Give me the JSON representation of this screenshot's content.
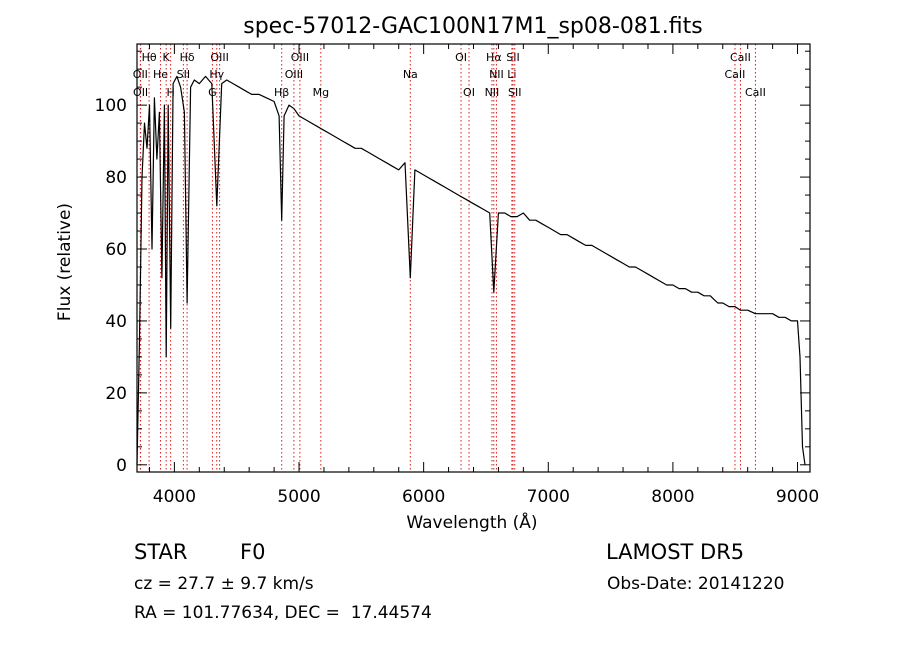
{
  "chart_data": {
    "type": "line",
    "title": "spec-57012-GAC100N17M1_sp08-081.fits",
    "xlabel": "Wavelength (Å)",
    "ylabel": "Flux (relative)",
    "xlim": [
      3700,
      9100
    ],
    "ylim": [
      -2,
      117
    ],
    "xticks": [
      4000,
      5000,
      6000,
      7000,
      8000,
      9000
    ],
    "yticks": [
      0,
      20,
      40,
      60,
      80,
      100
    ],
    "grid": false,
    "line_color": "#000000",
    "marker_color": "#cc2222",
    "line_markers": [
      {
        "label": "Hθ",
        "x": 3797,
        "row": 0
      },
      {
        "label": "K",
        "x": 3934,
        "row": 0
      },
      {
        "label": "Hδ",
        "x": 4102,
        "row": 0
      },
      {
        "label": "OIII",
        "x": 4363,
        "row": 0
      },
      {
        "label": "OIII",
        "x": 5007,
        "row": 0
      },
      {
        "label": "OI",
        "x": 6300,
        "row": 0
      },
      {
        "label": "Hα",
        "x": 6563,
        "row": 0
      },
      {
        "label": "SII",
        "x": 6717,
        "row": 0
      },
      {
        "label": "CaII",
        "x": 8542,
        "row": 0
      },
      {
        "label": "OII",
        "x": 3727,
        "row": 1
      },
      {
        "label": "He",
        "x": 3889,
        "row": 1
      },
      {
        "label": "SII",
        "x": 4072,
        "row": 1
      },
      {
        "label": "Hγ",
        "x": 4340,
        "row": 1
      },
      {
        "label": "OIII",
        "x": 4959,
        "row": 1
      },
      {
        "label": "Na",
        "x": 5893,
        "row": 1
      },
      {
        "label": "NII",
        "x": 6584,
        "row": 1
      },
      {
        "label": "Li",
        "x": 6708,
        "row": 1
      },
      {
        "label": "CaII",
        "x": 8498,
        "row": 1
      },
      {
        "label": "OII",
        "x": 3729,
        "row": 2
      },
      {
        "label": "H",
        "x": 3970,
        "row": 2
      },
      {
        "label": "G",
        "x": 4305,
        "row": 2
      },
      {
        "label": "Hβ",
        "x": 4861,
        "row": 2
      },
      {
        "label": "Mg",
        "x": 5175,
        "row": 2
      },
      {
        "label": "OI",
        "x": 6364,
        "row": 2
      },
      {
        "label": "NII",
        "x": 6548,
        "row": 2
      },
      {
        "label": "SII",
        "x": 6731,
        "row": 2
      },
      {
        "label": "CaII",
        "x": 8662,
        "row": 2
      }
    ],
    "series": [
      {
        "x": [
          3700,
          3720,
          3740,
          3760,
          3780,
          3800,
          3820,
          3840,
          3860,
          3880,
          3900,
          3920,
          3934,
          3950,
          3970,
          3990,
          4020,
          4050,
          4080,
          4102,
          4130,
          4160,
          4200,
          4250,
          4300,
          4340,
          4380,
          4420,
          4470,
          4520,
          4570,
          4620,
          4680,
          4740,
          4800,
          4840,
          4861,
          4880,
          4920,
          4960,
          5000,
          5050,
          5100,
          5150,
          5200,
          5250,
          5300,
          5350,
          5400,
          5450,
          5500,
          5550,
          5600,
          5650,
          5700,
          5750,
          5800,
          5850,
          5893,
          5930,
          5980,
          6030,
          6080,
          6130,
          6180,
          6230,
          6280,
          6330,
          6380,
          6430,
          6480,
          6530,
          6563,
          6600,
          6650,
          6700,
          6750,
          6800,
          6850,
          6900,
          6950,
          7000,
          7050,
          7100,
          7150,
          7200,
          7250,
          7300,
          7350,
          7400,
          7450,
          7500,
          7550,
          7600,
          7650,
          7700,
          7750,
          7800,
          7850,
          7900,
          7950,
          8000,
          8050,
          8100,
          8150,
          8200,
          8250,
          8300,
          8330,
          8360,
          8400,
          8450,
          8498,
          8542,
          8600,
          8662,
          8700,
          8750,
          8800,
          8850,
          8900,
          8950,
          9000,
          9020,
          9040,
          9060
        ],
        "y": [
          0,
          35,
          80,
          95,
          88,
          100,
          60,
          102,
          85,
          98,
          52,
          100,
          30,
          100,
          38,
          106,
          108,
          105,
          98,
          45,
          105,
          107,
          106,
          108,
          106,
          72,
          106,
          107,
          106,
          105,
          104,
          103,
          103,
          102,
          101,
          97,
          68,
          97,
          100,
          99,
          97,
          96,
          95,
          94,
          93,
          92,
          91,
          90,
          89,
          88,
          88,
          87,
          86,
          85,
          84,
          83,
          82,
          84,
          52,
          82,
          81,
          80,
          79,
          78,
          77,
          76,
          75,
          74,
          73,
          72,
          71,
          70,
          48,
          70,
          70,
          69,
          69,
          70,
          68,
          68,
          67,
          66,
          65,
          64,
          64,
          63,
          62,
          61,
          61,
          60,
          59,
          58,
          57,
          56,
          55,
          55,
          54,
          53,
          52,
          51,
          50,
          50,
          49,
          49,
          48,
          48,
          47,
          47,
          46,
          45,
          45,
          44,
          44,
          43,
          43,
          42,
          42,
          42,
          42,
          41,
          41,
          40,
          40,
          30,
          5,
          0
        ]
      }
    ]
  },
  "info": {
    "object_class": "STAR",
    "subclass": "F0",
    "survey": "LAMOST DR5",
    "redshift": "cz = 27.7 ± 9.7 km/s",
    "obs_date": "Obs-Date: 20141220",
    "coords": "RA = 101.77634, DEC =  17.44574"
  }
}
